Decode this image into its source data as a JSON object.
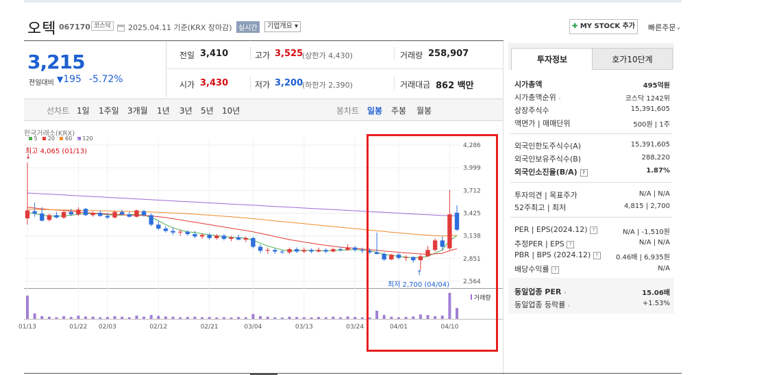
{
  "header": {
    "name": "오텍",
    "code": "067170",
    "market_badge": "코스닥",
    "date_text": "2025.04.11  기준(KRX 장마감)",
    "realtime_label": "실시간",
    "overview_label": "기업개요 ▾",
    "mystock_label": "MY STOCK 추가",
    "quick_order_label": "빠른주문"
  },
  "quote": {
    "price": "3,215",
    "change_label": "전일대비",
    "change": "195",
    "change_rate": "-5.72%",
    "prev_close_label": "전일",
    "prev_close": "3,410",
    "high_label": "고가",
    "high": "3,525",
    "upper_limit": "(상한가 4,430)",
    "volume_label": "거래량",
    "volume": "258,907",
    "open_label": "시가",
    "open": "3,430",
    "low_label": "저가",
    "low": "3,200",
    "lower_limit": "(하한가 2,390)",
    "amount_label": "거래대금",
    "amount": "862",
    "amount_unit": "백만"
  },
  "period_tabs": {
    "line_label": "선차트",
    "items": [
      "1일",
      "1주일",
      "3개월",
      "1년",
      "3년",
      "5년",
      "10년"
    ],
    "candle_label": "봉차트",
    "candle_items": [
      "일봉",
      "주봉",
      "월봉"
    ],
    "active": "일봉"
  },
  "chart_data": {
    "type": "candlestick",
    "source_label": "한국거래소(KRX)",
    "ma_legend": [
      {
        "name": "5",
        "color": "#4caf50"
      },
      {
        "name": "20",
        "color": "#e53935"
      },
      {
        "name": "60",
        "color": "#ef8a2b"
      },
      {
        "name": "120",
        "color": "#9c6ad6"
      }
    ],
    "y_ticks": [
      "4,286",
      "3,999",
      "3,712",
      "3,425",
      "3,138",
      "2,851",
      "2,564"
    ],
    "y_range": [
      2564,
      4286
    ],
    "x_labels": [
      "01/13",
      "01/22",
      "02/03",
      "02/12",
      "02/21",
      "03/04",
      "03/13",
      "03/24",
      "04/01",
      "04/10"
    ],
    "high_annotation": "최고 4,065 (01/13)",
    "low_annotation": "최저 2,700 (04/04)",
    "volume_label": "거래량",
    "up_color": "#e03b3b",
    "down_color": "#2f6fdc",
    "candles": [
      {
        "d": "01/13",
        "o": 3360,
        "h": 4065,
        "l": 3280,
        "c": 3460
      },
      {
        "d": "01/14",
        "o": 3450,
        "h": 3560,
        "l": 3380,
        "c": 3420
      },
      {
        "d": "01/15",
        "o": 3420,
        "h": 3500,
        "l": 3320,
        "c": 3330
      },
      {
        "d": "01/16",
        "o": 3340,
        "h": 3420,
        "l": 3320,
        "c": 3400
      },
      {
        "d": "01/17",
        "o": 3400,
        "h": 3440,
        "l": 3360,
        "c": 3370
      },
      {
        "d": "01/20",
        "o": 3370,
        "h": 3460,
        "l": 3350,
        "c": 3440
      },
      {
        "d": "01/21",
        "o": 3440,
        "h": 3480,
        "l": 3390,
        "c": 3410
      },
      {
        "d": "01/22",
        "o": 3410,
        "h": 3500,
        "l": 3390,
        "c": 3470
      },
      {
        "d": "01/23",
        "o": 3480,
        "h": 3490,
        "l": 3390,
        "c": 3400
      },
      {
        "d": "01/24",
        "o": 3400,
        "h": 3450,
        "l": 3380,
        "c": 3430
      },
      {
        "d": "01/31",
        "o": 3430,
        "h": 3460,
        "l": 3380,
        "c": 3390
      },
      {
        "d": "02/03",
        "o": 3390,
        "h": 3430,
        "l": 3350,
        "c": 3370
      },
      {
        "d": "02/04",
        "o": 3370,
        "h": 3460,
        "l": 3360,
        "c": 3440
      },
      {
        "d": "02/05",
        "o": 3440,
        "h": 3470,
        "l": 3400,
        "c": 3410
      },
      {
        "d": "02/06",
        "o": 3410,
        "h": 3440,
        "l": 3370,
        "c": 3380
      },
      {
        "d": "02/07",
        "o": 3380,
        "h": 3470,
        "l": 3370,
        "c": 3460
      },
      {
        "d": "02/10",
        "o": 3450,
        "h": 3470,
        "l": 3380,
        "c": 3400
      },
      {
        "d": "02/11",
        "o": 3400,
        "h": 3420,
        "l": 3260,
        "c": 3280
      },
      {
        "d": "02/12",
        "o": 3280,
        "h": 3320,
        "l": 3210,
        "c": 3230
      },
      {
        "d": "02/13",
        "o": 3230,
        "h": 3260,
        "l": 3180,
        "c": 3200
      },
      {
        "d": "02/14",
        "o": 3200,
        "h": 3240,
        "l": 3150,
        "c": 3180
      },
      {
        "d": "02/17",
        "o": 3180,
        "h": 3220,
        "l": 3140,
        "c": 3190
      },
      {
        "d": "02/18",
        "o": 3190,
        "h": 3210,
        "l": 3140,
        "c": 3160
      },
      {
        "d": "02/19",
        "o": 3160,
        "h": 3200,
        "l": 3110,
        "c": 3130
      },
      {
        "d": "02/20",
        "o": 3130,
        "h": 3170,
        "l": 3100,
        "c": 3150
      },
      {
        "d": "02/21",
        "o": 3150,
        "h": 3170,
        "l": 3090,
        "c": 3110
      },
      {
        "d": "02/24",
        "o": 3110,
        "h": 3160,
        "l": 3090,
        "c": 3140
      },
      {
        "d": "02/25",
        "o": 3140,
        "h": 3160,
        "l": 3080,
        "c": 3100
      },
      {
        "d": "02/26",
        "o": 3100,
        "h": 3140,
        "l": 3070,
        "c": 3120
      },
      {
        "d": "02/27",
        "o": 3120,
        "h": 3150,
        "l": 3080,
        "c": 3090
      },
      {
        "d": "02/28",
        "o": 3090,
        "h": 3130,
        "l": 3060,
        "c": 3110
      },
      {
        "d": "03/04",
        "o": 3110,
        "h": 3130,
        "l": 2980,
        "c": 3000
      },
      {
        "d": "03/05",
        "o": 3000,
        "h": 3030,
        "l": 2920,
        "c": 2950
      },
      {
        "d": "03/06",
        "o": 2950,
        "h": 2990,
        "l": 2910,
        "c": 2960
      },
      {
        "d": "03/07",
        "o": 2960,
        "h": 2980,
        "l": 2910,
        "c": 2940
      },
      {
        "d": "03/10",
        "o": 2940,
        "h": 2960,
        "l": 2910,
        "c": 2930
      },
      {
        "d": "03/11",
        "o": 2930,
        "h": 2990,
        "l": 2910,
        "c": 2970
      },
      {
        "d": "03/12",
        "o": 2970,
        "h": 2990,
        "l": 2920,
        "c": 2940
      },
      {
        "d": "03/13",
        "o": 2940,
        "h": 2990,
        "l": 2920,
        "c": 2960
      },
      {
        "d": "03/14",
        "o": 2960,
        "h": 2980,
        "l": 2920,
        "c": 2940
      },
      {
        "d": "03/17",
        "o": 2940,
        "h": 2990,
        "l": 2930,
        "c": 2960
      },
      {
        "d": "03/18",
        "o": 2960,
        "h": 2980,
        "l": 2920,
        "c": 2940
      },
      {
        "d": "03/19",
        "o": 2940,
        "h": 2990,
        "l": 2930,
        "c": 2970
      },
      {
        "d": "03/20",
        "o": 2970,
        "h": 3000,
        "l": 2940,
        "c": 2960
      },
      {
        "d": "03/21",
        "o": 2960,
        "h": 3030,
        "l": 2950,
        "c": 2990
      },
      {
        "d": "03/24",
        "o": 2990,
        "h": 3010,
        "l": 2940,
        "c": 2960
      },
      {
        "d": "03/25",
        "o": 2960,
        "h": 2990,
        "l": 2920,
        "c": 2950
      },
      {
        "d": "03/26",
        "o": 2950,
        "h": 2980,
        "l": 2910,
        "c": 2930
      },
      {
        "d": "03/27",
        "o": 2930,
        "h": 3180,
        "l": 2900,
        "c": 2910
      },
      {
        "d": "03/28",
        "o": 2910,
        "h": 2930,
        "l": 2820,
        "c": 2840
      },
      {
        "d": "03/31",
        "o": 2840,
        "h": 2910,
        "l": 2830,
        "c": 2900
      },
      {
        "d": "04/01",
        "o": 2900,
        "h": 2920,
        "l": 2840,
        "c": 2860
      },
      {
        "d": "04/02",
        "o": 2860,
        "h": 2890,
        "l": 2820,
        "c": 2870
      },
      {
        "d": "04/03",
        "o": 2870,
        "h": 2880,
        "l": 2800,
        "c": 2830
      },
      {
        "d": "04/04",
        "o": 2830,
        "h": 2900,
        "l": 2700,
        "c": 2880
      },
      {
        "d": "04/07",
        "o": 2880,
        "h": 3010,
        "l": 2870,
        "c": 2960
      },
      {
        "d": "04/08",
        "o": 2960,
        "h": 3110,
        "l": 2940,
        "c": 3080
      },
      {
        "d": "04/09",
        "o": 3080,
        "h": 3130,
        "l": 2950,
        "c": 3000
      },
      {
        "d": "04/10",
        "o": 2980,
        "h": 3720,
        "l": 2960,
        "c": 3410
      },
      {
        "d": "04/11",
        "o": 3430,
        "h": 3525,
        "l": 3200,
        "c": 3215
      }
    ],
    "volume": [
      85,
      20,
      10,
      8,
      6,
      10,
      7,
      12,
      9,
      8,
      6,
      7,
      10,
      8,
      6,
      12,
      8,
      14,
      11,
      9,
      8,
      6,
      7,
      8,
      6,
      7,
      5,
      6,
      5,
      7,
      6,
      18,
      10,
      8,
      6,
      5,
      8,
      7,
      6,
      5,
      7,
      6,
      8,
      6,
      9,
      7,
      6,
      5,
      30,
      14,
      8,
      6,
      7,
      9,
      16,
      14,
      10,
      12,
      95,
      40
    ],
    "ma": {
      "ma5": [
        3430,
        3420,
        3400,
        3390,
        3385,
        3390,
        3400,
        3410,
        3420,
        3420,
        3415,
        3405,
        3400,
        3400,
        3405,
        3410,
        3400,
        3370,
        3330,
        3280,
        3240,
        3210,
        3190,
        3180,
        3165,
        3150,
        3140,
        3130,
        3120,
        3115,
        3110,
        3080,
        3045,
        3010,
        2985,
        2960,
        2950,
        2950,
        2955,
        2955,
        2950,
        2950,
        2955,
        2955,
        2960,
        2965,
        2960,
        2950,
        2930,
        2905,
        2890,
        2880,
        2870,
        2860,
        2865,
        2880,
        2920,
        2960,
        3080,
        3140
      ],
      "ma20": [
        3500,
        3490,
        3480,
        3470,
        3465,
        3460,
        3450,
        3440,
        3432,
        3425,
        3420,
        3415,
        3410,
        3405,
        3400,
        3398,
        3396,
        3390,
        3380,
        3370,
        3355,
        3340,
        3325,
        3310,
        3295,
        3280,
        3265,
        3250,
        3235,
        3220,
        3205,
        3190,
        3170,
        3150,
        3130,
        3110,
        3090,
        3075,
        3060,
        3045,
        3030,
        3018,
        3006,
        2996,
        2988,
        2980,
        2972,
        2964,
        2956,
        2946,
        2938,
        2930,
        2922,
        2916,
        2910,
        2906,
        2910,
        2918,
        2950,
        2975
      ],
      "ma60": [
        3475,
        3473,
        3471,
        3469,
        3467,
        3465,
        3463,
        3461,
        3459,
        3457,
        3455,
        3453,
        3451,
        3449,
        3447,
        3445,
        3443,
        3440,
        3436,
        3432,
        3428,
        3423,
        3418,
        3412,
        3406,
        3400,
        3393,
        3386,
        3379,
        3372,
        3364,
        3355,
        3346,
        3337,
        3328,
        3319,
        3310,
        3301,
        3292,
        3283,
        3274,
        3265,
        3256,
        3247,
        3238,
        3229,
        3220,
        3211,
        3202,
        3193,
        3184,
        3176,
        3168,
        3160,
        3153,
        3146,
        3140,
        3136,
        3140,
        3143
      ],
      "ma120": [
        3680,
        3675,
        3670,
        3665,
        3660,
        3655,
        3650,
        3645,
        3640,
        3635,
        3630,
        3625,
        3620,
        3615,
        3610,
        3605,
        3600,
        3595,
        3590,
        3585,
        3580,
        3575,
        3570,
        3565,
        3560,
        3555,
        3550,
        3545,
        3540,
        3535,
        3530,
        3525,
        3520,
        3515,
        3510,
        3505,
        3500,
        3495,
        3490,
        3485,
        3480,
        3475,
        3470,
        3465,
        3460,
        3455,
        3450,
        3445,
        3440,
        3435,
        3430,
        3425,
        3420,
        3415,
        3410,
        3405,
        3400,
        3396,
        3392,
        3390
      ]
    }
  },
  "invest": {
    "tab_active": "투자정보",
    "tab_other": "호가10단계",
    "rows1": [
      {
        "label": "시가총액",
        "value": "495억원",
        "bold": true
      },
      {
        "label": "시가총액순위",
        "value": "코스닥 1242위",
        "arrow": true
      },
      {
        "label": "상장주식수",
        "value": "15,391,605"
      },
      {
        "label": "액면가 | 매매단위",
        "value": "500원 | 1주"
      }
    ],
    "rows2": [
      {
        "label": "외국인한도주식수(A)",
        "value": "15,391,605"
      },
      {
        "label": "외국인보유주식수(B)",
        "value": "288,220"
      },
      {
        "label": "외국인소진율(B/A)",
        "value": "1.87%",
        "bold": true,
        "help": true
      }
    ],
    "rows3": [
      {
        "label": "투자의견 | 목표주가",
        "value": "N/A | N/A"
      },
      {
        "label": "52주최고 | 최저",
        "value": "4,815 | 2,700"
      }
    ],
    "rows4": [
      {
        "label": "PER | EPS(2024.12)",
        "value": "N/A | -1,510원",
        "help": true
      },
      {
        "label": "추정PER | EPS",
        "value": "N/A | N/A",
        "help": true
      },
      {
        "label": "PBR | BPS (2024.12)",
        "value": "0.46배 | 6,935원",
        "help": true
      },
      {
        "label": "배당수익률",
        "value": "N/A",
        "help": true
      }
    ],
    "rows5": [
      {
        "label": "동일업종 PER",
        "value": "15.06배",
        "arrow": true,
        "bold": true
      },
      {
        "label": "동일업종 등락률",
        "value": "+1.53%",
        "arrow": true,
        "red": true
      }
    ]
  }
}
